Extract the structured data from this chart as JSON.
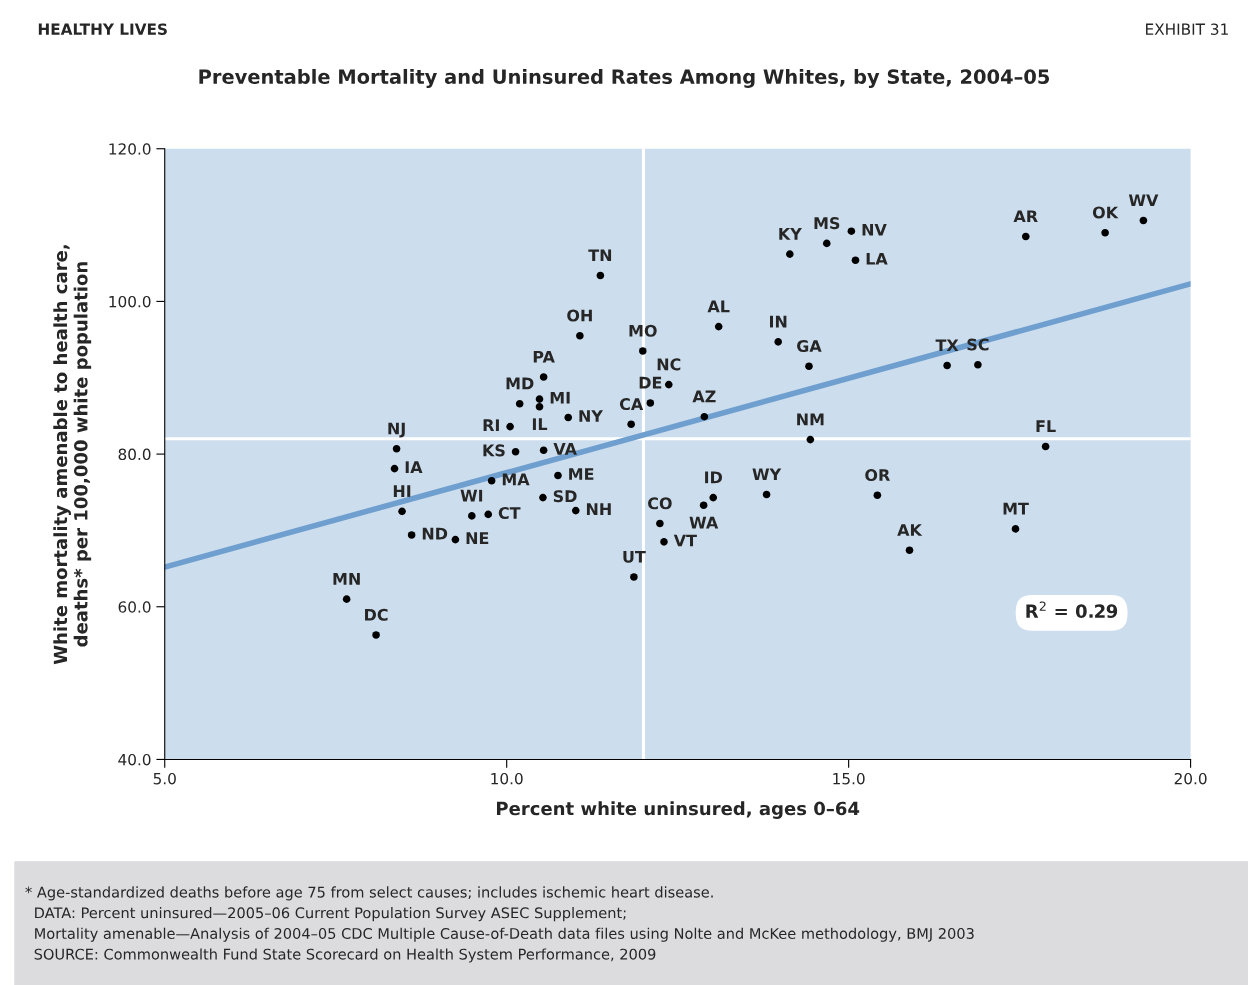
{
  "chart_data": {
    "type": "scatter",
    "title": "Preventable Mortality and Uninsured Rates Among Whites, by State, 2004–05",
    "xlabel": "Percent white uninsured, ages 0–64",
    "ylabel": "White mortality amenable to health care,\ndeaths* per 100,000 white population",
    "xlim": [
      5,
      20
    ],
    "ylim": [
      40,
      120
    ],
    "xticks": [
      {
        "value": 5,
        "label": "5.0"
      },
      {
        "value": 10,
        "label": "10.0"
      },
      {
        "value": 15,
        "label": "15.0"
      },
      {
        "value": 20,
        "label": "20.0"
      }
    ],
    "yticks": [
      {
        "value": 40,
        "label": "40.0"
      },
      {
        "value": 60,
        "label": "60.0"
      },
      {
        "value": 80,
        "label": "80.0"
      },
      {
        "value": 100,
        "label": "100.0"
      },
      {
        "value": 120,
        "label": "120.0"
      }
    ],
    "grid": false,
    "legend": false,
    "ref_lines": [
      {
        "axis": "x",
        "value": 12.0,
        "color": "#ffffff"
      },
      {
        "axis": "y",
        "value": 82.0,
        "color": "#ffffff"
      }
    ],
    "series": [
      {
        "marker": "circle",
        "color": "#000000",
        "x": [
          10.54,
          10.19,
          10.48,
          10.48,
          10.9,
          10.05,
          11.82,
          12.1,
          8.39,
          10.13,
          10.54,
          8.36,
          10.75,
          9.78,
          10.53,
          11.01,
          8.47,
          9.49,
          9.73,
          12.24,
          8.61,
          9.25,
          12.3,
          11.86,
          7.66,
          8.09,
          11.37,
          11.07,
          11.99,
          12.37,
          13.1,
          13.97,
          14.42,
          12.89,
          14.44,
          14.14,
          14.68,
          15.04,
          15.1,
          13.02,
          12.88,
          13.8,
          15.42,
          17.59,
          18.75,
          19.31,
          16.44,
          16.89,
          17.88,
          17.44,
          15.89
        ],
        "values": [
          90.1,
          86.6,
          87.2,
          86.2,
          84.8,
          83.6,
          83.9,
          86.7,
          80.7,
          80.3,
          80.5,
          78.1,
          77.2,
          76.5,
          74.3,
          72.6,
          72.5,
          71.9,
          72.1,
          70.9,
          69.4,
          68.8,
          68.5,
          63.9,
          61.0,
          56.3,
          103.4,
          95.5,
          93.5,
          89.1,
          96.7,
          94.7,
          91.5,
          84.9,
          81.9,
          106.2,
          107.6,
          109.2,
          105.4,
          74.3,
          73.3,
          74.7,
          74.6,
          108.5,
          109.0,
          110.6,
          91.6,
          91.7,
          81.0,
          70.2,
          67.4
        ]
      },
      {
        "type": "line",
        "color": "#6f9fcf",
        "x": [
          5,
          20
        ],
        "values": [
          65.2,
          102.3
        ]
      }
    ],
    "annotations": [
      "HEALTHY LIVES",
      "EXHIBIT 31",
      "R$^{2}$ = 0.29",
      "* Age-standardized deaths before age 75 from select causes; includes ischemic heart disease.",
      "DATA: Percent uninsured—2005–06 Current Population Survey ASEC Supplement;",
      "Mortality amenable—Analysis of 2004–05 CDC Multiple Cause-of-Death data files using Nolte and McKee methodology, BMJ 2003",
      "SOURCE: Commonwealth Fund State Scorecard on Health System Performance, 2009",
      {
        "text": "PA",
        "x": 10.54,
        "y": 90.1
      },
      {
        "text": "MD",
        "x": 10.19,
        "y": 86.6
      },
      {
        "text": "MI",
        "x": 10.48,
        "y": 87.2
      },
      {
        "text": "IL",
        "x": 10.48,
        "y": 86.2
      },
      {
        "text": "NY",
        "x": 10.9,
        "y": 84.8
      },
      {
        "text": "RI",
        "x": 10.05,
        "y": 83.6
      },
      {
        "text": "CA",
        "x": 11.82,
        "y": 83.9
      },
      {
        "text": "DE",
        "x": 12.1,
        "y": 86.7
      },
      {
        "text": "NJ",
        "x": 8.39,
        "y": 80.7
      },
      {
        "text": "KS",
        "x": 10.13,
        "y": 80.3
      },
      {
        "text": "VA",
        "x": 10.54,
        "y": 80.5
      },
      {
        "text": "IA",
        "x": 8.36,
        "y": 78.1
      },
      {
        "text": "ME",
        "x": 10.75,
        "y": 77.2
      },
      {
        "text": "MA",
        "x": 9.78,
        "y": 76.5
      },
      {
        "text": "SD",
        "x": 10.53,
        "y": 74.3
      },
      {
        "text": "NH",
        "x": 11.01,
        "y": 72.6
      },
      {
        "text": "HI",
        "x": 8.47,
        "y": 72.5
      },
      {
        "text": "WI",
        "x": 9.49,
        "y": 71.9
      },
      {
        "text": "CT",
        "x": 9.73,
        "y": 72.1
      },
      {
        "text": "CO",
        "x": 12.24,
        "y": 70.9
      },
      {
        "text": "ND",
        "x": 8.61,
        "y": 69.4
      },
      {
        "text": "NE",
        "x": 9.25,
        "y": 68.8
      },
      {
        "text": "VT",
        "x": 12.3,
        "y": 68.5
      },
      {
        "text": "UT",
        "x": 11.86,
        "y": 63.9
      },
      {
        "text": "MN",
        "x": 7.66,
        "y": 61.0
      },
      {
        "text": "DC",
        "x": 8.09,
        "y": 56.3
      },
      {
        "text": "TN",
        "x": 11.37,
        "y": 103.4
      },
      {
        "text": "OH",
        "x": 11.07,
        "y": 95.5
      },
      {
        "text": "MO",
        "x": 11.99,
        "y": 93.5
      },
      {
        "text": "NC",
        "x": 12.37,
        "y": 89.1
      },
      {
        "text": "AL",
        "x": 13.1,
        "y": 96.7
      },
      {
        "text": "IN",
        "x": 13.97,
        "y": 94.7
      },
      {
        "text": "GA",
        "x": 14.42,
        "y": 91.5
      },
      {
        "text": "AZ",
        "x": 12.89,
        "y": 84.9
      },
      {
        "text": "NM",
        "x": 14.44,
        "y": 81.9
      },
      {
        "text": "KY",
        "x": 14.14,
        "y": 106.2
      },
      {
        "text": "MS",
        "x": 14.68,
        "y": 107.6
      },
      {
        "text": "NV",
        "x": 15.04,
        "y": 109.2
      },
      {
        "text": "LA",
        "x": 15.1,
        "y": 105.4
      },
      {
        "text": "ID",
        "x": 13.02,
        "y": 74.3
      },
      {
        "text": "WA",
        "x": 12.88,
        "y": 73.3
      },
      {
        "text": "WY",
        "x": 13.8,
        "y": 74.7
      },
      {
        "text": "OR",
        "x": 15.42,
        "y": 74.6
      },
      {
        "text": "AR",
        "x": 17.59,
        "y": 108.5
      },
      {
        "text": "OK",
        "x": 18.75,
        "y": 109.0
      },
      {
        "text": "WV",
        "x": 19.31,
        "y": 110.6
      },
      {
        "text": "TX",
        "x": 16.44,
        "y": 91.6
      },
      {
        "text": "SC",
        "x": 16.89,
        "y": 91.7
      },
      {
        "text": "FL",
        "x": 17.88,
        "y": 81.0
      },
      {
        "text": "MT",
        "x": 17.44,
        "y": 70.2
      },
      {
        "text": "AK",
        "x": 15.89,
        "y": 67.4
      }
    ]
  }
}
